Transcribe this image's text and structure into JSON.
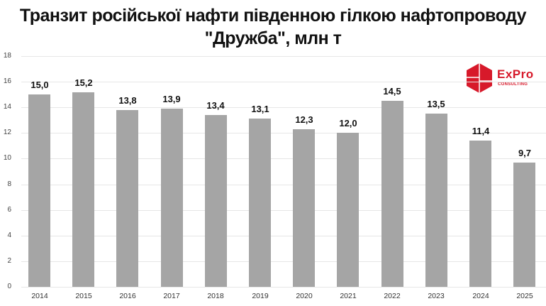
{
  "title_line1": "Транзит російської нафти південною гілкою нафтопроводу",
  "title_line2": "\"Дружба\", млн т",
  "logo": {
    "brand": "ExPro",
    "subtitle": "CONSULTING",
    "color": "#d7192a"
  },
  "colors": {
    "bar": "#a5a5a5",
    "grid": "#e6e6e6"
  },
  "chart_data": {
    "type": "bar",
    "title": "Транзит російської нафти південною гілкою нафтопроводу \"Дружба\", млн т",
    "xlabel": "",
    "ylabel": "",
    "ylim": [
      0,
      18
    ],
    "yticks": [
      0,
      2,
      4,
      6,
      8,
      10,
      12,
      14,
      16,
      18
    ],
    "grid": true,
    "legend": "none",
    "categories": [
      "2014",
      "2015",
      "2016",
      "2017",
      "2018",
      "2019",
      "2020",
      "2021",
      "2022",
      "2023",
      "2024",
      "2025"
    ],
    "values": [
      15.0,
      15.2,
      13.8,
      13.9,
      13.4,
      13.1,
      12.3,
      12.0,
      14.5,
      13.5,
      11.4,
      9.7
    ],
    "labels": [
      "15,0",
      "15,2",
      "13,8",
      "13,9",
      "13,4",
      "13,1",
      "12,3",
      "12,0",
      "14,5",
      "13,5",
      "11,4",
      "9,7"
    ]
  }
}
